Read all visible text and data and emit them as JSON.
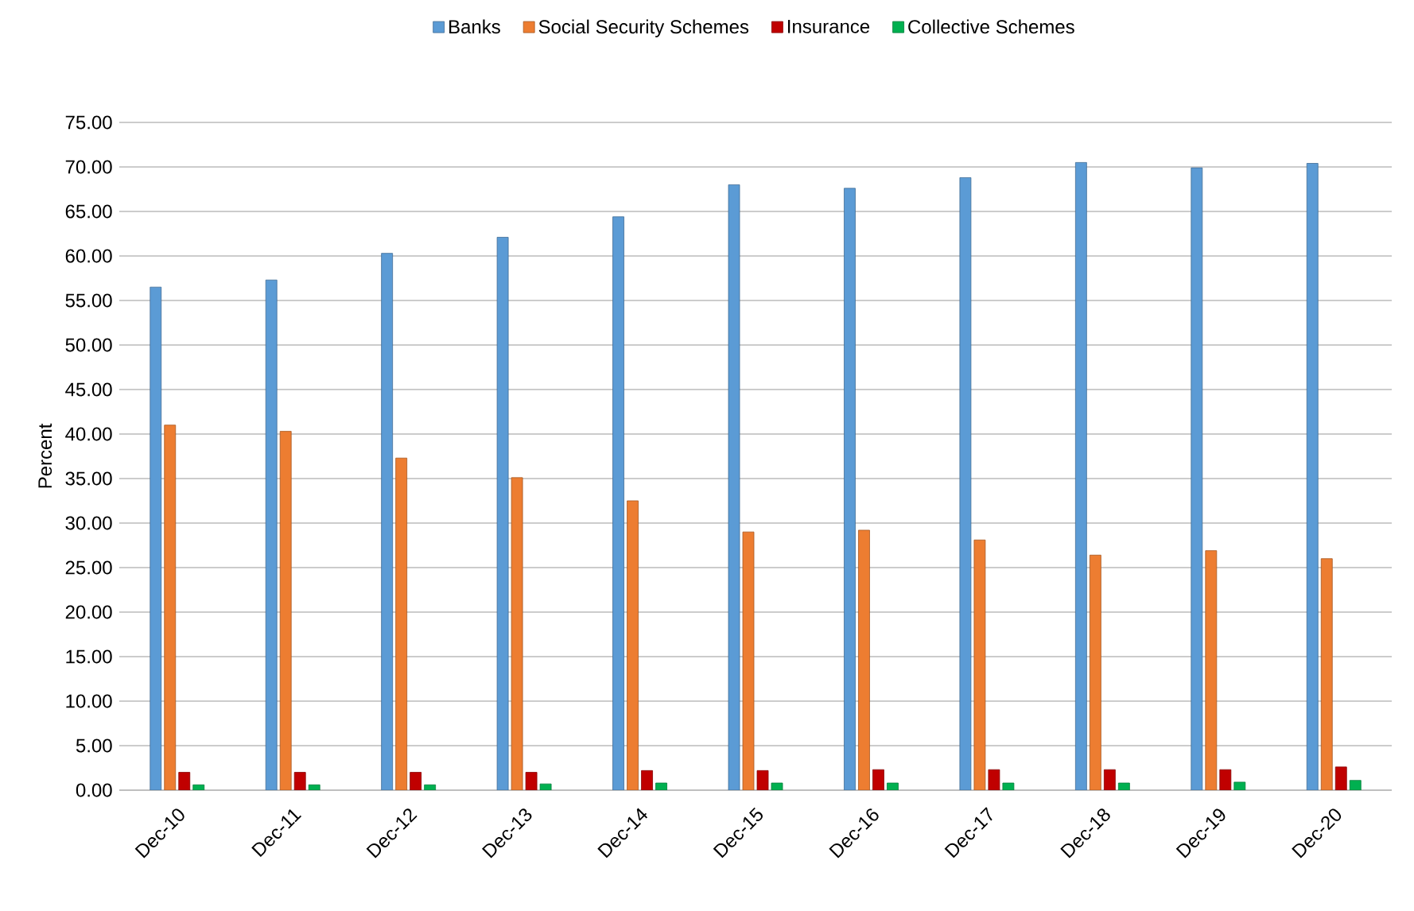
{
  "chart_data": {
    "type": "bar",
    "ylabel": "Percent",
    "categories": [
      "Dec-10",
      "Dec-11",
      "Dec-12",
      "Dec-13",
      "Dec-14",
      "Dec-15",
      "Dec-16",
      "Dec-17",
      "Dec-18",
      "Dec-19",
      "Dec-20"
    ],
    "series": [
      {
        "name": "Banks",
        "color": "#5b9bd5",
        "values": [
          56.5,
          57.3,
          60.3,
          62.1,
          64.4,
          68.0,
          67.6,
          68.8,
          70.5,
          69.9,
          70.4
        ]
      },
      {
        "name": "Social Security Schemes",
        "color": "#ed7d31",
        "values": [
          41.0,
          40.3,
          37.3,
          35.1,
          32.5,
          29.0,
          29.2,
          28.1,
          26.4,
          26.9,
          26.0
        ]
      },
      {
        "name": "Insurance",
        "color": "#c00000",
        "values": [
          2.0,
          2.0,
          2.0,
          2.0,
          2.2,
          2.2,
          2.3,
          2.3,
          2.3,
          2.3,
          2.6
        ]
      },
      {
        "name": "Collective Schemes",
        "color": "#00b050",
        "values": [
          0.6,
          0.6,
          0.6,
          0.7,
          0.8,
          0.8,
          0.8,
          0.8,
          0.8,
          0.9,
          1.1
        ]
      }
    ],
    "ylim": [
      0,
      75
    ],
    "yticks": [
      {
        "value": 0,
        "label": "0.00"
      },
      {
        "value": 5,
        "label": "5.00"
      },
      {
        "value": 10,
        "label": "10.00"
      },
      {
        "value": 15,
        "label": "15.00"
      },
      {
        "value": 20,
        "label": "20.00"
      },
      {
        "value": 25,
        "label": "25.00"
      },
      {
        "value": 30,
        "label": "30.00"
      },
      {
        "value": 35,
        "label": "35.00"
      },
      {
        "value": 40,
        "label": "40.00"
      },
      {
        "value": 45,
        "label": "45.00"
      },
      {
        "value": 50,
        "label": "50.00"
      },
      {
        "value": 55,
        "label": "55.00"
      },
      {
        "value": 60,
        "label": "60.00"
      },
      {
        "value": 65,
        "label": "65.00"
      },
      {
        "value": 70,
        "label": "70.00"
      },
      {
        "value": 75,
        "label": "75.00"
      }
    ],
    "grid": "y",
    "legend": "top"
  }
}
